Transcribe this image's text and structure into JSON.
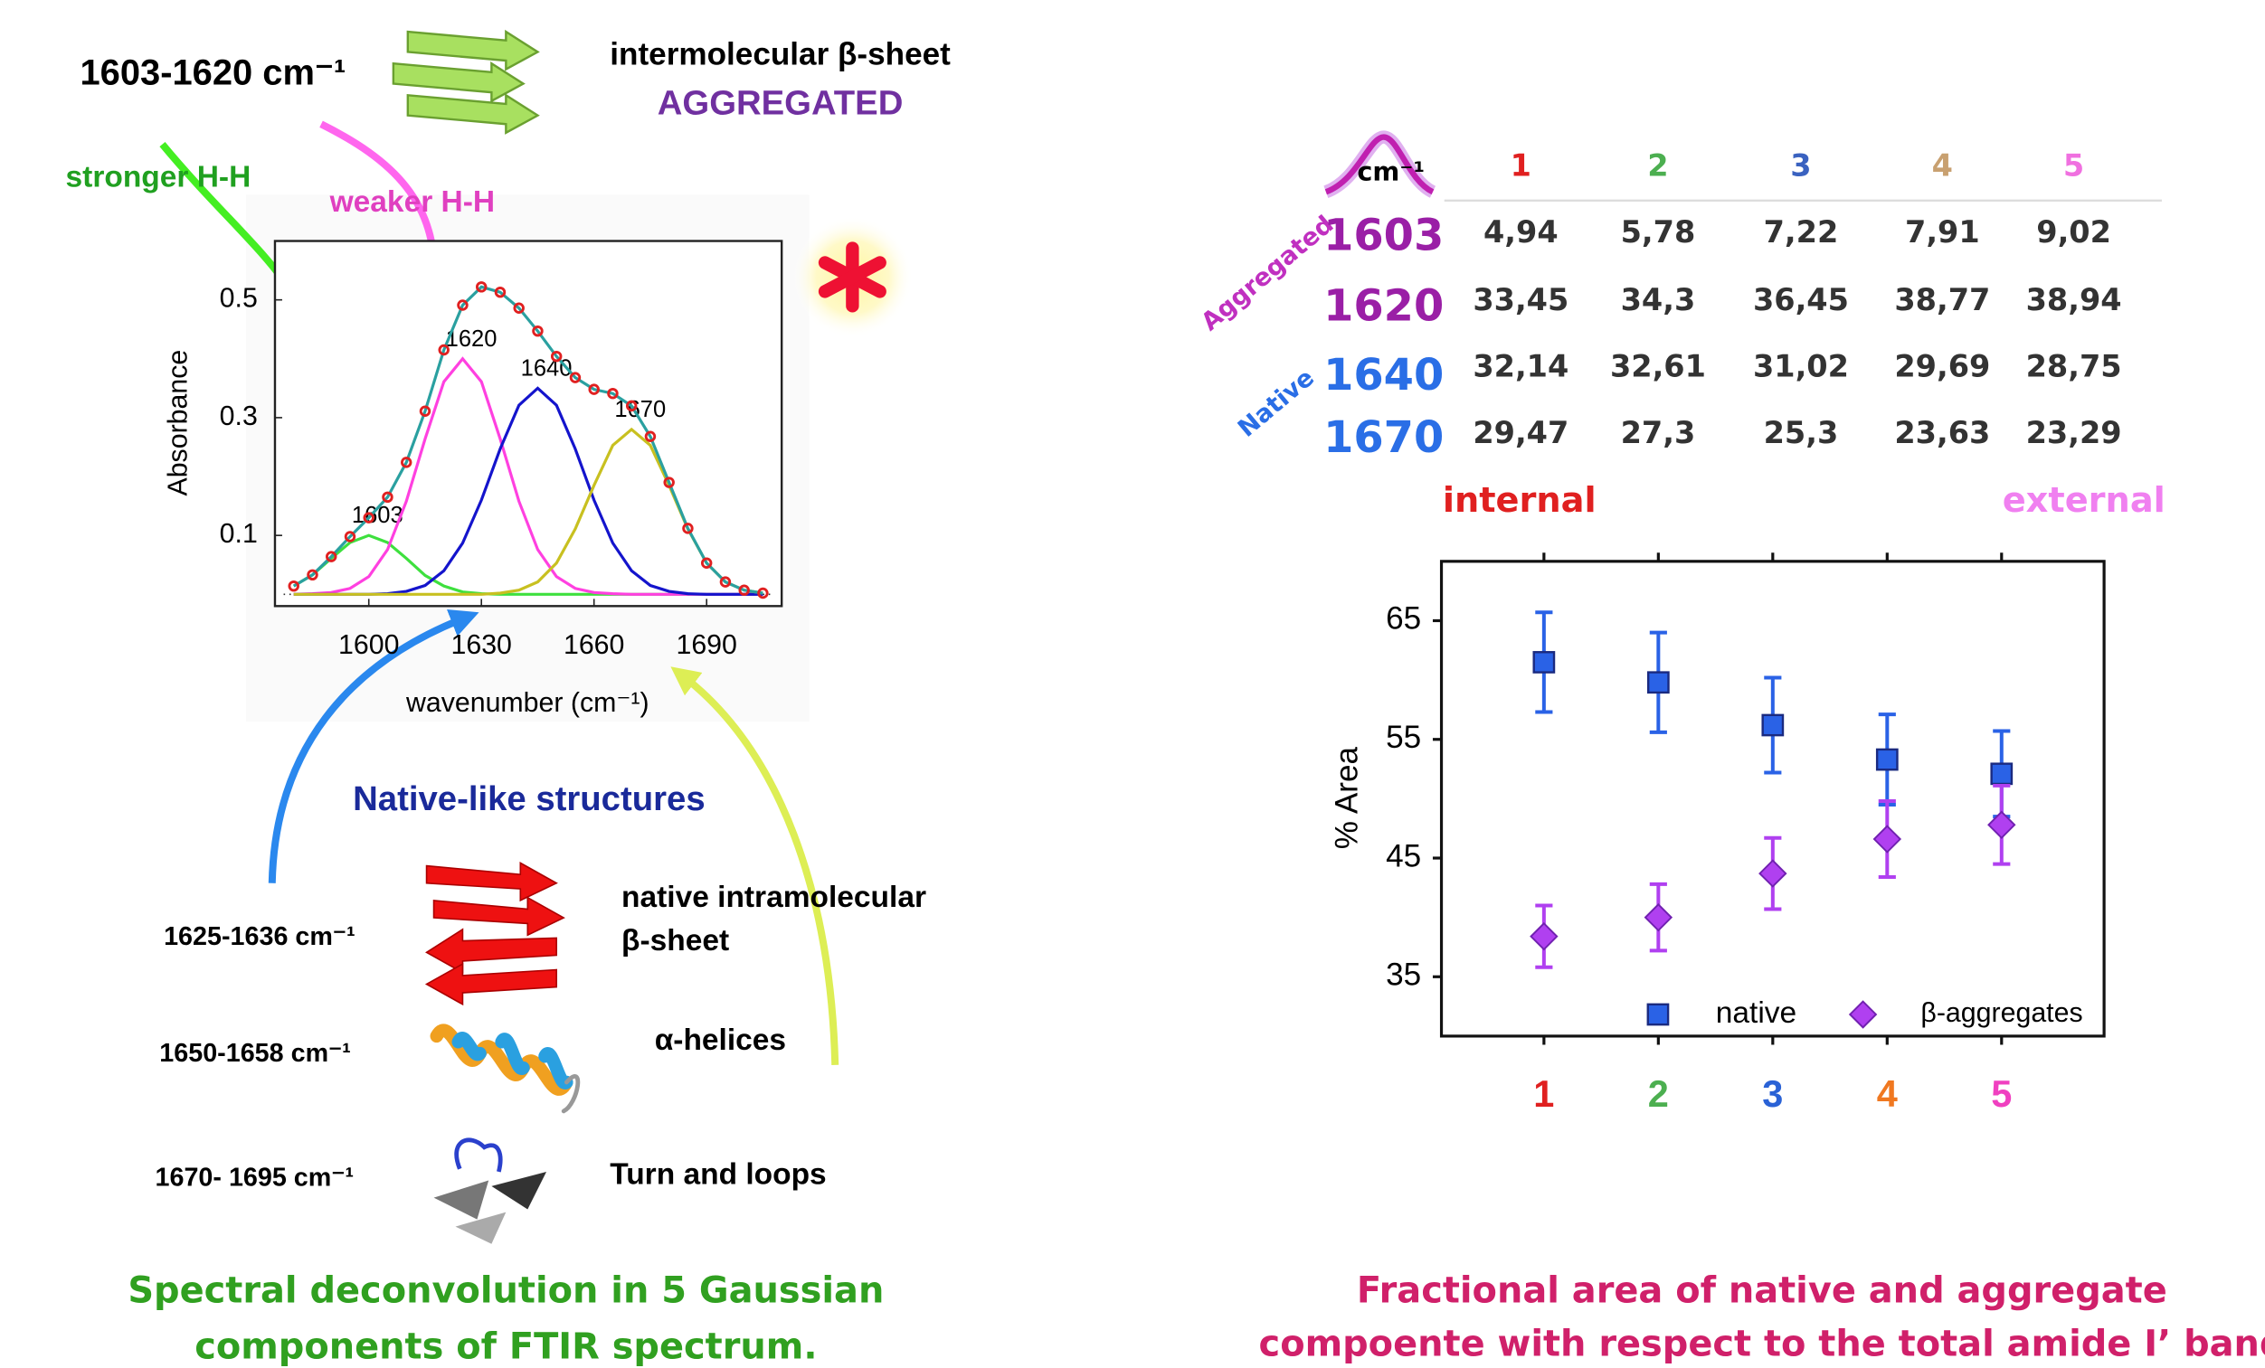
{
  "left_panel": {
    "aggregated_band": "1603-1620 cm⁻¹",
    "aggregated_title": "intermolecular β-sheet",
    "aggregated_label": "AGGREGATED",
    "stronger": "stronger H-H",
    "weaker": "weaker H-H",
    "native_title": "Native-like structures",
    "bands": [
      {
        "range": "1625-1636 cm⁻¹",
        "label": [
          "native intramolecular",
          "β-sheet"
        ]
      },
      {
        "range": "1650-1658 cm⁻¹",
        "label": [
          "α-helices"
        ]
      },
      {
        "range": "1670- 1695 cm⁻¹",
        "label": [
          "Turn and loops"
        ]
      }
    ],
    "caption": [
      "Spectral deconvolution in 5 Gaussian",
      "components of FTIR spectrum."
    ]
  },
  "table": {
    "unit": "cm⁻¹",
    "columns": [
      "1",
      "2",
      "3",
      "4",
      "5"
    ],
    "column_colors": [
      "#e02020",
      "#4caf50",
      "#3a62c0",
      "#c8a070",
      "#f070e0"
    ],
    "groups": [
      {
        "label": "Aggregated",
        "color": "#c030c0",
        "row_color": "#9a1fa6",
        "rows": [
          {
            "label": "1603",
            "values": [
              "4,94",
              "5,78",
              "7,22",
              "7,91",
              "9,02"
            ]
          },
          {
            "label": "1620",
            "values": [
              "33,45",
              "34,3",
              "36,45",
              "38,77",
              "38,94"
            ]
          }
        ]
      },
      {
        "label": "Native",
        "color": "#2a6ee6",
        "row_color": "#2a6ee6",
        "rows": [
          {
            "label": "1640",
            "values": [
              "32,14",
              "32,61",
              "31,02",
              "29,69",
              "28,75"
            ]
          },
          {
            "label": "1670",
            "values": [
              "29,47",
              "27,3",
              "25,3",
              "23,63",
              "23,29"
            ]
          }
        ]
      }
    ],
    "left_note": "internal",
    "right_note": "external"
  },
  "right_caption": [
    "Fractional area of native and aggregate",
    "compoente with respect to the total amide I’ band"
  ],
  "chart_data": [
    {
      "type": "line",
      "x_label": "wavenumber (cm⁻¹)",
      "y_label": "Absorbance",
      "x": [
        1580,
        1585,
        1590,
        1595,
        1600,
        1605,
        1610,
        1615,
        1620,
        1625,
        1630,
        1635,
        1640,
        1645,
        1650,
        1655,
        1660,
        1665,
        1670,
        1675,
        1680,
        1685,
        1690,
        1695,
        1700,
        1705
      ],
      "xlim": [
        1575,
        1710
      ],
      "ylim": [
        -0.02,
        0.6
      ],
      "xticks": [
        1600,
        1630,
        1660,
        1690
      ],
      "yticks": [
        0.1,
        0.3,
        0.5
      ],
      "series": [
        {
          "label": "1603",
          "color": "#3ee03e",
          "values": [
            0.014,
            0.033,
            0.061,
            0.088,
            0.1,
            0.088,
            0.061,
            0.032,
            0.014,
            0.004,
            0.001,
            0,
            0,
            0,
            0,
            0,
            0,
            0,
            0,
            0,
            0,
            0,
            0,
            0,
            0,
            0
          ]
        },
        {
          "label": "1620",
          "color": "#ff40e0",
          "values": [
            0,
            0.001,
            0.003,
            0.01,
            0.03,
            0.076,
            0.158,
            0.264,
            0.361,
            0.4,
            0.361,
            0.264,
            0.158,
            0.076,
            0.03,
            0.01,
            0.003,
            0.001,
            0,
            0,
            0,
            0,
            0,
            0,
            0,
            0
          ]
        },
        {
          "label": "1640",
          "color": "#1414cc",
          "values": [
            0,
            0,
            0,
            0,
            0,
            0.001,
            0.005,
            0.015,
            0.04,
            0.087,
            0.16,
            0.247,
            0.321,
            0.35,
            0.321,
            0.247,
            0.16,
            0.087,
            0.04,
            0.015,
            0.005,
            0.001,
            0,
            0,
            0,
            0
          ]
        },
        {
          "label": "1670",
          "color": "#c8c020",
          "values": [
            0,
            0,
            0,
            0,
            0,
            0,
            0,
            0,
            0,
            0,
            0,
            0.002,
            0.007,
            0.021,
            0.053,
            0.111,
            0.185,
            0.253,
            0.28,
            0.253,
            0.185,
            0.111,
            0.053,
            0.021,
            0.007,
            0.002
          ]
        },
        {
          "color": "#2aa0a0",
          "marker_color": "#e02020",
          "values": [
            0.014,
            0.033,
            0.064,
            0.098,
            0.13,
            0.165,
            0.224,
            0.311,
            0.415,
            0.491,
            0.522,
            0.513,
            0.486,
            0.447,
            0.404,
            0.368,
            0.348,
            0.341,
            0.32,
            0.268,
            0.19,
            0.112,
            0.053,
            0.021,
            0.007,
            0.002
          ]
        }
      ]
    },
    {
      "type": "errorbar",
      "y_label": "% Area",
      "categories": [
        "1",
        "2",
        "3",
        "4",
        "5"
      ],
      "category_colors": [
        "#e02020",
        "#4caf50",
        "#2a62d6",
        "#f07820",
        "#f040c0"
      ],
      "ylim": [
        30,
        70
      ],
      "yticks": [
        35,
        45,
        55,
        65
      ],
      "legend": "bottom-right",
      "series": [
        {
          "name": "native",
          "color": "#2a62e6",
          "marker": "square",
          "values": [
            61.5,
            59.8,
            56.2,
            53.3,
            52.1
          ],
          "errors": [
            4.2,
            4.2,
            4.0,
            3.8,
            3.6
          ]
        },
        {
          "name": "β-aggregates",
          "color": "#b040f0",
          "marker": "diamond",
          "values": [
            38.4,
            40.0,
            43.7,
            46.6,
            47.8
          ],
          "errors": [
            2.6,
            2.8,
            3.0,
            3.2,
            3.3
          ]
        }
      ]
    }
  ]
}
